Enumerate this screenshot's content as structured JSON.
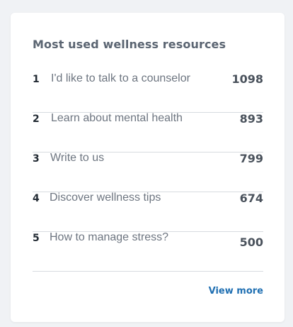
{
  "card": {
    "title": "Most used wellness resources",
    "items": [
      {
        "rank": "1",
        "label": "I'd like to talk to a counselor",
        "count": "1098"
      },
      {
        "rank": "2",
        "label": "Learn about mental health",
        "count": "893"
      },
      {
        "rank": "3",
        "label": "Write to us",
        "count": "799"
      },
      {
        "rank": "4",
        "label": "Discover wellness tips",
        "count": "674"
      },
      {
        "rank": "5",
        "label": "How to manage stress?",
        "count": "500"
      }
    ],
    "view_more_label": "View more"
  },
  "colors": {
    "background": "#f0f2f5",
    "card": "#ffffff",
    "title": "#5b6572",
    "link": "#1f6fb2",
    "divider": "#d7dbe0"
  }
}
